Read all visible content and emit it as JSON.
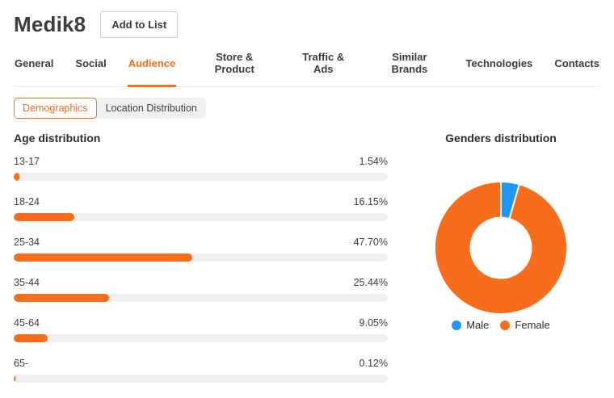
{
  "theme": {
    "accent_color": "#f66d1c",
    "male_color": "#2196f3",
    "track_color": "#efefef"
  },
  "header": {
    "title": "Medik8",
    "add_to_list_label": "Add to List"
  },
  "tabs": {
    "items": [
      "General",
      "Social",
      "Audience",
      "Store & Product",
      "Traffic & Ads",
      "Similar Brands",
      "Technologies",
      "Contacts"
    ],
    "active": "Audience",
    "active_index": 2
  },
  "subtabs": {
    "items": [
      {
        "label": "Demographics",
        "active": true
      },
      {
        "label": "Location Distribution",
        "active": false
      }
    ]
  },
  "chart_data": [
    {
      "type": "bar",
      "title": "Age distribution",
      "orientation": "horizontal",
      "categories": [
        "13-17",
        "18-24",
        "25-34",
        "35-44",
        "45-64",
        "65-"
      ],
      "values": [
        1.54,
        16.15,
        47.7,
        25.44,
        9.05,
        0.12
      ],
      "value_labels": [
        "1.54%",
        "16.15%",
        "47.70%",
        "25.44%",
        "9.05%",
        "0.12%"
      ],
      "xlim": [
        0,
        100
      ],
      "bar_color": "#f66d1c",
      "track_color": "#efefef",
      "grid": false
    },
    {
      "type": "pie",
      "title": "Genders distribution",
      "donut": true,
      "labels": [
        "Male",
        "Female"
      ],
      "values": [
        4.5,
        95.5
      ],
      "colors": [
        "#2196f3",
        "#f66d1c"
      ],
      "start_angle_deg": 0,
      "legend_position": "bottom"
    }
  ]
}
